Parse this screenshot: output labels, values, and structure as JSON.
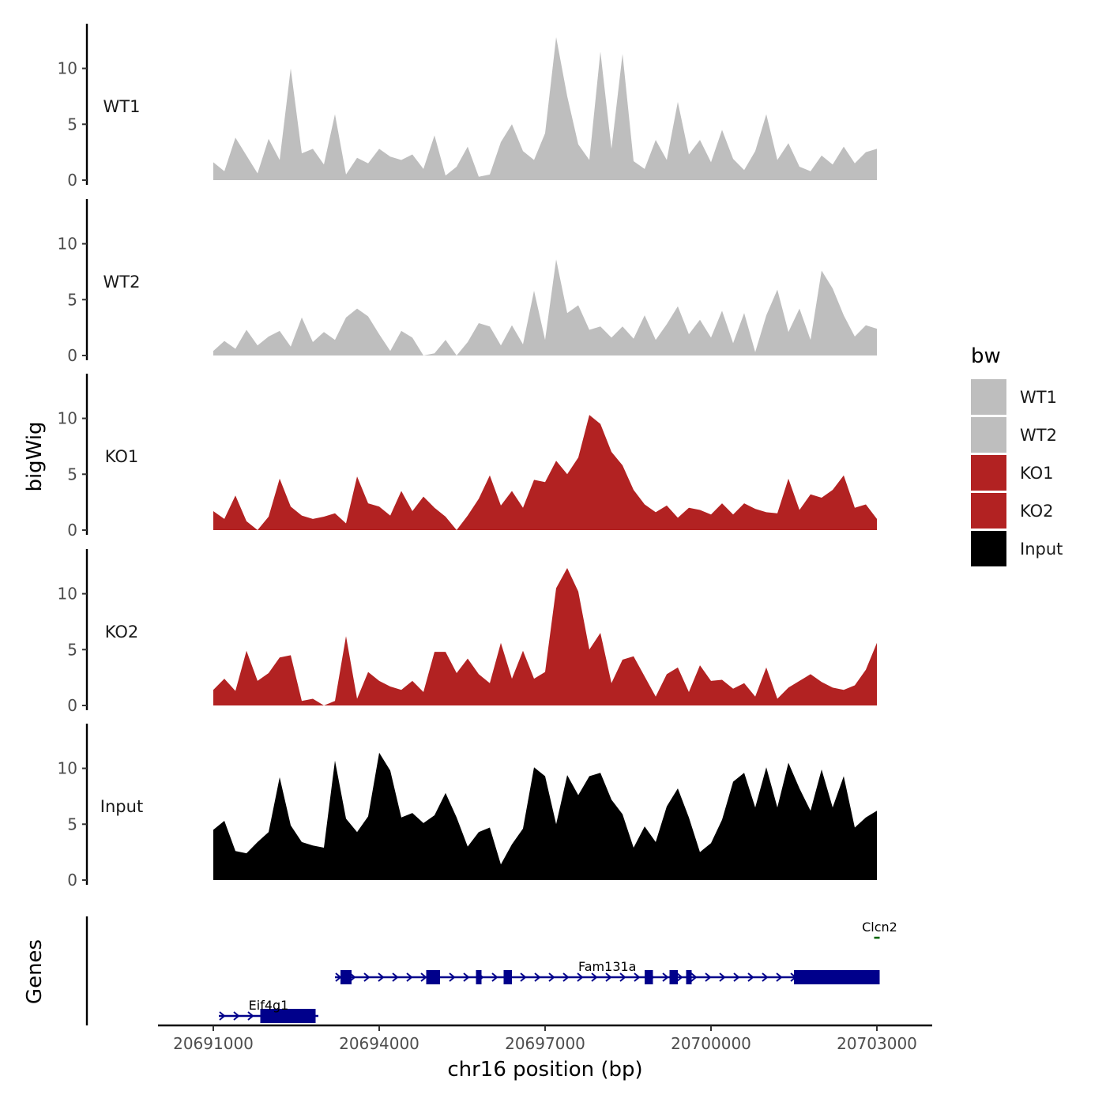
{
  "chart_data": {
    "type": "area",
    "title": "",
    "xlabel": "chr16 position (bp)",
    "ylabel": "bigWig",
    "genes_ylabel": "Genes",
    "xlim": [
      20690000,
      20704000
    ],
    "ylim": [
      0,
      14
    ],
    "x_ticks": [
      20691000,
      20694000,
      20697000,
      20700000,
      20703000
    ],
    "x_tick_labels": [
      "20691000",
      "20694000",
      "20697000",
      "20700000",
      "20703000"
    ],
    "y_ticks": [
      0,
      5,
      10
    ],
    "y_tick_labels": [
      "0",
      "5",
      "10"
    ],
    "legend": {
      "title": "bw",
      "position": "right",
      "entries": [
        {
          "label": "WT1",
          "color": "#bebebe"
        },
        {
          "label": "WT2",
          "color": "#bebebe"
        },
        {
          "label": "KO1",
          "color": "#b22222"
        },
        {
          "label": "KO2",
          "color": "#b22222"
        },
        {
          "label": "Input",
          "color": "#000000"
        }
      ]
    },
    "x": [
      20691000,
      20691200,
      20691400,
      20691600,
      20691800,
      20692000,
      20692200,
      20692400,
      20692600,
      20692800,
      20693000,
      20693200,
      20693400,
      20693600,
      20693800,
      20694000,
      20694200,
      20694400,
      20694600,
      20694800,
      20695000,
      20695200,
      20695400,
      20695600,
      20695800,
      20696000,
      20696200,
      20696400,
      20696600,
      20696800,
      20697000,
      20697200,
      20697400,
      20697600,
      20697800,
      20698000,
      20698200,
      20698400,
      20698600,
      20698800,
      20699000,
      20699200,
      20699400,
      20699600,
      20699800,
      20700000,
      20700200,
      20700400,
      20700600,
      20700800,
      20701000,
      20701200,
      20701400,
      20701600,
      20701800,
      20702000,
      20702200,
      20702400,
      20702600,
      20702800,
      20703000
    ],
    "series": [
      {
        "name": "WT1",
        "color": "#bebebe",
        "values": [
          1.6,
          0.8,
          3.8,
          2.2,
          0.6,
          3.7,
          1.8,
          10.0,
          2.4,
          2.8,
          1.4,
          5.9,
          0.5,
          2.0,
          1.5,
          2.8,
          2.1,
          1.8,
          2.3,
          1.0,
          4.0,
          0.4,
          1.2,
          3.0,
          0.3,
          0.5,
          3.4,
          5.0,
          2.6,
          1.8,
          4.2,
          12.8,
          7.5,
          3.2,
          1.8,
          11.5,
          2.8,
          11.3,
          1.7,
          1.0,
          3.6,
          1.8,
          7.0,
          2.3,
          3.6,
          1.6,
          4.5,
          1.9,
          0.9,
          2.6,
          5.9,
          1.8,
          3.3,
          1.2,
          0.8,
          2.2,
          1.4,
          3.0,
          1.5,
          2.5,
          2.8
        ]
      },
      {
        "name": "WT2",
        "color": "#bebebe",
        "values": [
          0.4,
          1.3,
          0.6,
          2.3,
          0.9,
          1.7,
          2.2,
          0.8,
          3.4,
          1.2,
          2.1,
          1.4,
          3.4,
          4.2,
          3.5,
          1.9,
          0.4,
          2.2,
          1.6,
          0.0,
          0.2,
          1.4,
          0.0,
          1.2,
          2.9,
          2.6,
          0.9,
          2.7,
          1.0,
          5.8,
          1.4,
          8.6,
          3.8,
          4.5,
          2.3,
          2.6,
          1.6,
          2.6,
          1.5,
          3.6,
          1.4,
          2.8,
          4.4,
          1.9,
          3.2,
          1.6,
          4.0,
          1.1,
          3.8,
          0.3,
          3.6,
          5.9,
          2.1,
          4.2,
          1.4,
          7.6,
          6.0,
          3.6,
          1.7,
          2.7,
          2.4
        ]
      },
      {
        "name": "KO1",
        "color": "#b22222",
        "values": [
          1.7,
          1.0,
          3.1,
          0.8,
          0.0,
          1.2,
          4.6,
          2.1,
          1.3,
          1.0,
          1.2,
          1.5,
          0.6,
          4.8,
          2.4,
          2.1,
          1.3,
          3.5,
          1.7,
          3.0,
          2.0,
          1.2,
          0.0,
          1.3,
          2.8,
          4.9,
          2.2,
          3.5,
          2.0,
          4.5,
          4.3,
          6.2,
          5.0,
          6.5,
          10.3,
          9.5,
          7.0,
          5.8,
          3.6,
          2.3,
          1.6,
          2.2,
          1.1,
          2.0,
          1.8,
          1.4,
          2.4,
          1.4,
          2.4,
          1.9,
          1.6,
          1.5,
          4.6,
          1.8,
          3.2,
          2.9,
          3.6,
          4.9,
          2.0,
          2.3,
          1.0
        ]
      },
      {
        "name": "KO2",
        "color": "#b22222",
        "values": [
          1.4,
          2.4,
          1.3,
          4.9,
          2.2,
          2.9,
          4.3,
          4.5,
          0.4,
          0.6,
          0.0,
          0.4,
          6.2,
          0.6,
          3.0,
          2.2,
          1.7,
          1.4,
          2.2,
          1.2,
          4.8,
          4.8,
          2.9,
          4.2,
          2.8,
          2.0,
          5.6,
          2.4,
          4.9,
          2.4,
          3.0,
          10.5,
          12.3,
          10.2,
          5.0,
          6.5,
          2.0,
          4.1,
          4.4,
          2.6,
          0.8,
          2.8,
          3.4,
          1.2,
          3.6,
          2.2,
          2.3,
          1.5,
          2.0,
          0.8,
          3.4,
          0.6,
          1.6,
          2.2,
          2.8,
          2.1,
          1.6,
          1.4,
          1.8,
          3.2,
          5.6
        ]
      },
      {
        "name": "Input",
        "color": "#000000",
        "values": [
          4.5,
          5.3,
          2.6,
          2.4,
          3.4,
          4.3,
          9.2,
          4.9,
          3.4,
          3.1,
          2.9,
          10.7,
          5.5,
          4.3,
          5.7,
          11.4,
          9.8,
          5.6,
          6.0,
          5.1,
          5.8,
          7.8,
          5.6,
          3.0,
          4.3,
          4.7,
          1.4,
          3.2,
          4.6,
          10.1,
          9.3,
          5.0,
          9.4,
          7.6,
          9.3,
          9.6,
          7.2,
          5.9,
          2.9,
          4.8,
          3.4,
          6.6,
          8.2,
          5.6,
          2.5,
          3.3,
          5.4,
          8.8,
          9.6,
          6.5,
          10.1,
          6.5,
          10.5,
          8.2,
          6.2,
          9.9,
          6.5,
          9.3,
          4.7,
          5.6,
          6.2
        ]
      }
    ],
    "genes": [
      {
        "name": "Eif4g1",
        "color": "#00008b",
        "start": 20691100,
        "end": 20692900,
        "strand": "+",
        "exons": [
          [
            20691850,
            20692850
          ]
        ]
      },
      {
        "name": "Fam131a",
        "color": "#00008b",
        "start": 20693200,
        "end": 20703050,
        "strand": "+",
        "exons": [
          [
            20693300,
            20693500
          ],
          [
            20694850,
            20695100
          ],
          [
            20695750,
            20695850
          ],
          [
            20696250,
            20696400
          ],
          [
            20698800,
            20698950
          ],
          [
            20699250,
            20699400
          ],
          [
            20699550,
            20699650
          ],
          [
            20701500,
            20703050
          ]
        ]
      },
      {
        "name": "Clcn2",
        "color": "#006400",
        "start": 20702950,
        "end": 20703050,
        "strand": "-",
        "exons": []
      }
    ]
  }
}
